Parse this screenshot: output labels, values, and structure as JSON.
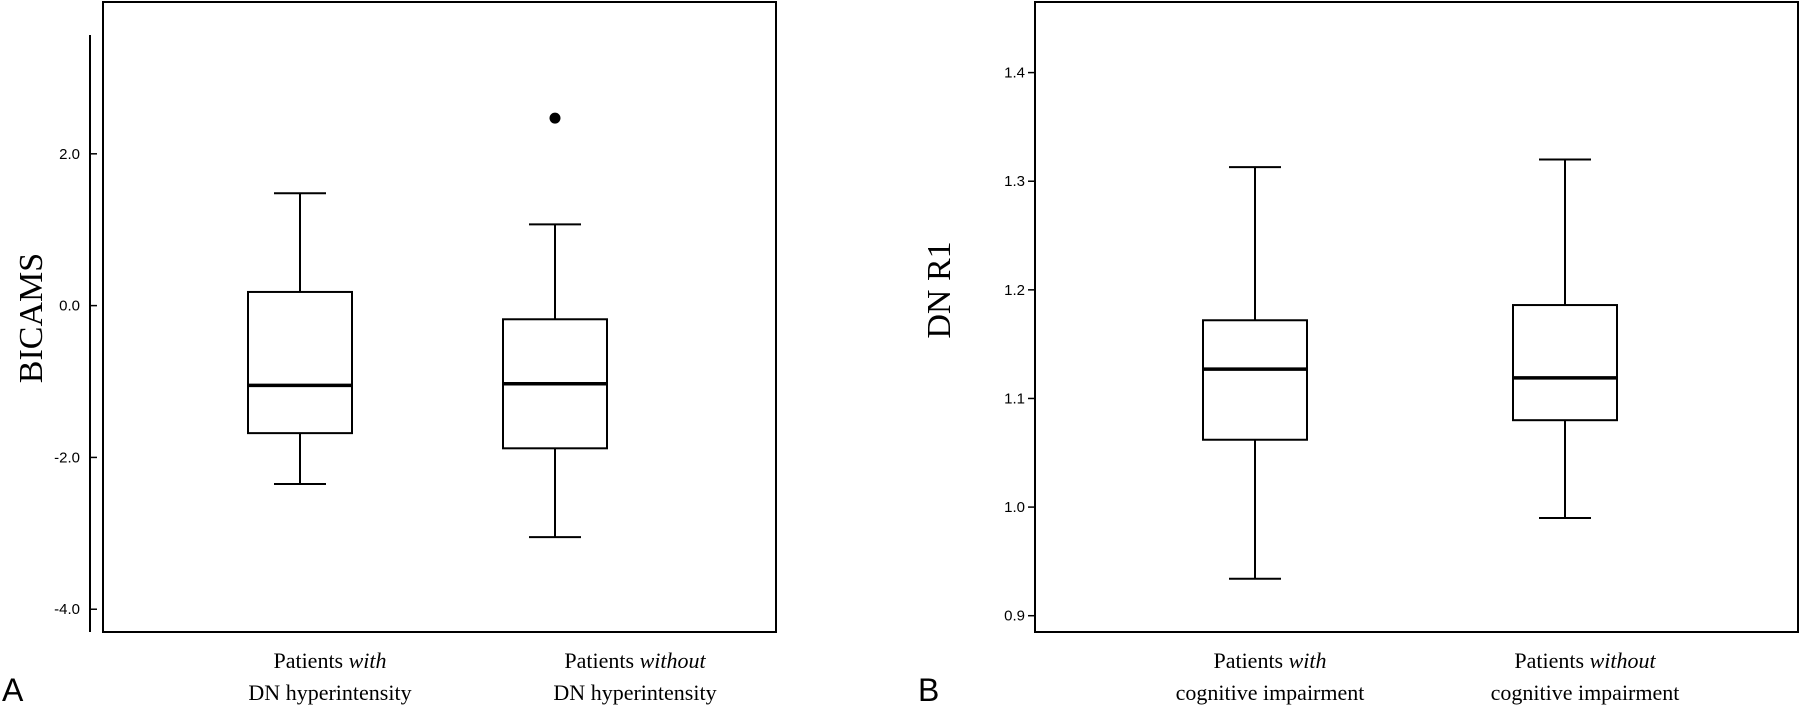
{
  "chart_data": [
    {
      "type": "box",
      "panel": "A",
      "ylabel": "BICAMS",
      "ylim": [
        -4.3,
        4.0
      ],
      "yticks": [
        {
          "value": 2.0,
          "label": "2.0"
        },
        {
          "value": 0.0,
          "label": "0.0"
        },
        {
          "value": -2.0,
          "label": "-2.0"
        },
        {
          "value": -4.0,
          "label": "-4.0"
        }
      ],
      "grid": false,
      "categories": [
        {
          "line1_plain": "Patients ",
          "line1_italic": "with",
          "line2": "DN hyperintensity"
        },
        {
          "line1_plain": "Patients ",
          "line1_italic": "without",
          "line2": "DN hyperintensity"
        }
      ],
      "boxes": [
        {
          "whisker_low": -2.35,
          "q1": -1.68,
          "median": -1.05,
          "q3": 0.18,
          "whisker_high": 1.48,
          "outliers": []
        },
        {
          "whisker_low": -3.05,
          "q1": -1.88,
          "median": -1.03,
          "q3": -0.18,
          "whisker_high": 1.07,
          "outliers": [
            2.47
          ]
        }
      ]
    },
    {
      "type": "box",
      "panel": "B",
      "ylabel": "DN R1",
      "ylim": [
        0.885,
        1.465
      ],
      "yticks": [
        {
          "value": 1.4,
          "label": "1.4"
        },
        {
          "value": 1.3,
          "label": "1.3"
        },
        {
          "value": 1.2,
          "label": "1.2"
        },
        {
          "value": 1.1,
          "label": "1.1"
        },
        {
          "value": 1.0,
          "label": "1.0"
        },
        {
          "value": 0.9,
          "label": "0.9"
        }
      ],
      "grid": false,
      "categories": [
        {
          "line1_plain": "Patients ",
          "line1_italic": "with",
          "line2": "cognitive impairment"
        },
        {
          "line1_plain": "Patients ",
          "line1_italic": "without",
          "line2": "cognitive impairment"
        }
      ],
      "boxes": [
        {
          "whisker_low": 0.934,
          "q1": 1.062,
          "median": 1.127,
          "q3": 1.172,
          "whisker_high": 1.313,
          "outliers": []
        },
        {
          "whisker_low": 0.99,
          "q1": 1.08,
          "median": 1.119,
          "q3": 1.186,
          "whisker_high": 1.32,
          "outliers": []
        }
      ]
    }
  ]
}
